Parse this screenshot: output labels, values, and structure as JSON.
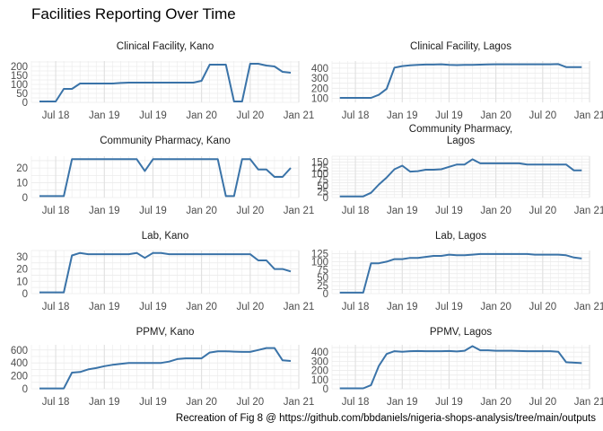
{
  "title": "Facilities Reporting Over Time",
  "caption": "Recreation of Fig 8 @ https://github.com/bbdaniels/nigeria-shops-analysis/tree/main/outputs",
  "line_color": "#3a73a8",
  "grid_color": "#ebebeb",
  "chart_data": [
    {
      "type": "line",
      "title": "Clinical Facility, Kano",
      "x": [
        "2018-05",
        "2018-06",
        "2018-07",
        "2018-08",
        "2018-09",
        "2018-10",
        "2018-11",
        "2018-12",
        "2019-01",
        "2019-02",
        "2019-03",
        "2019-04",
        "2019-05",
        "2019-06",
        "2019-07",
        "2019-08",
        "2019-09",
        "2019-10",
        "2019-11",
        "2019-12",
        "2020-01",
        "2020-02",
        "2020-03",
        "2020-04",
        "2020-05",
        "2020-06",
        "2020-07",
        "2020-08",
        "2020-09",
        "2020-10",
        "2020-11",
        "2020-12"
      ],
      "values": [
        5,
        5,
        5,
        75,
        75,
        105,
        105,
        105,
        105,
        105,
        108,
        110,
        110,
        110,
        110,
        110,
        110,
        110,
        110,
        110,
        120,
        210,
        210,
        210,
        5,
        5,
        215,
        215,
        205,
        200,
        170,
        165
      ],
      "ylim": [
        0,
        230
      ],
      "yticks": [
        0,
        50,
        100,
        150,
        200
      ]
    },
    {
      "type": "line",
      "title": "Clinical Facility, Lagos",
      "x": [
        "2018-05",
        "2018-06",
        "2018-07",
        "2018-08",
        "2018-09",
        "2018-10",
        "2018-11",
        "2018-12",
        "2019-01",
        "2019-02",
        "2019-03",
        "2019-04",
        "2019-05",
        "2019-06",
        "2019-07",
        "2019-08",
        "2019-09",
        "2019-10",
        "2019-11",
        "2019-12",
        "2020-01",
        "2020-02",
        "2020-03",
        "2020-04",
        "2020-05",
        "2020-06",
        "2020-07",
        "2020-08",
        "2020-09",
        "2020-10",
        "2020-11",
        "2020-12"
      ],
      "values": [
        105,
        105,
        105,
        105,
        105,
        135,
        195,
        405,
        420,
        428,
        432,
        435,
        435,
        438,
        432,
        430,
        432,
        432,
        434,
        436,
        438,
        438,
        438,
        438,
        438,
        438,
        438,
        438,
        440,
        410,
        410,
        410
      ],
      "ylim": [
        60,
        470
      ],
      "yticks": [
        100,
        200,
        300,
        400
      ]
    },
    {
      "type": "line",
      "title": "Community Pharmacy, Kano",
      "x": [
        "2018-05",
        "2018-06",
        "2018-07",
        "2018-08",
        "2018-09",
        "2018-10",
        "2018-11",
        "2018-12",
        "2019-01",
        "2019-02",
        "2019-03",
        "2019-04",
        "2019-05",
        "2019-06",
        "2019-07",
        "2019-08",
        "2019-09",
        "2019-10",
        "2019-11",
        "2019-12",
        "2020-01",
        "2020-02",
        "2020-03",
        "2020-04",
        "2020-05",
        "2020-06",
        "2020-07",
        "2020-08",
        "2020-09",
        "2020-10",
        "2020-11",
        "2020-12"
      ],
      "values": [
        1,
        1,
        1,
        1,
        26,
        26,
        26,
        26,
        26,
        26,
        26,
        26,
        26,
        18,
        26,
        26,
        26,
        26,
        26,
        26,
        26,
        26,
        26,
        1,
        1,
        26,
        26,
        19,
        19,
        14,
        14,
        20
      ],
      "ylim": [
        0,
        28
      ],
      "yticks": [
        0,
        10,
        20
      ]
    },
    {
      "type": "line",
      "title": "Community Pharmacy,\nLagos",
      "x": [
        "2018-05",
        "2018-06",
        "2018-07",
        "2018-08",
        "2018-09",
        "2018-10",
        "2018-11",
        "2018-12",
        "2019-01",
        "2019-02",
        "2019-03",
        "2019-04",
        "2019-05",
        "2019-06",
        "2019-07",
        "2019-08",
        "2019-09",
        "2019-10",
        "2019-11",
        "2019-12",
        "2020-01",
        "2020-02",
        "2020-03",
        "2020-04",
        "2020-05",
        "2020-06",
        "2020-07",
        "2020-08",
        "2020-09",
        "2020-10",
        "2020-11",
        "2020-12"
      ],
      "values": [
        5,
        5,
        5,
        5,
        20,
        55,
        85,
        120,
        135,
        110,
        112,
        118,
        118,
        120,
        130,
        140,
        140,
        162,
        145,
        145,
        145,
        145,
        145,
        145,
        140,
        140,
        140,
        140,
        140,
        140,
        115,
        115
      ],
      "ylim": [
        0,
        175
      ],
      "yticks": [
        0,
        25,
        50,
        75,
        100,
        125,
        150
      ]
    },
    {
      "type": "line",
      "title": "Lab, Kano",
      "x": [
        "2018-05",
        "2018-06",
        "2018-07",
        "2018-08",
        "2018-09",
        "2018-10",
        "2018-11",
        "2018-12",
        "2019-01",
        "2019-02",
        "2019-03",
        "2019-04",
        "2019-05",
        "2019-06",
        "2019-07",
        "2019-08",
        "2019-09",
        "2019-10",
        "2019-11",
        "2019-12",
        "2020-01",
        "2020-02",
        "2020-03",
        "2020-04",
        "2020-05",
        "2020-06",
        "2020-07",
        "2020-08",
        "2020-09",
        "2020-10",
        "2020-11",
        "2020-12"
      ],
      "values": [
        1,
        1,
        1,
        1,
        31,
        33,
        32,
        32,
        32,
        32,
        32,
        32,
        33,
        29,
        33,
        33,
        32,
        32,
        32,
        32,
        32,
        32,
        32,
        32,
        32,
        32,
        32,
        27,
        27,
        20,
        20,
        18
      ],
      "ylim": [
        0,
        35
      ],
      "yticks": [
        0,
        10,
        20,
        30
      ]
    },
    {
      "type": "line",
      "title": "Lab, Lagos",
      "x": [
        "2018-05",
        "2018-06",
        "2018-07",
        "2018-08",
        "2018-09",
        "2018-10",
        "2018-11",
        "2018-12",
        "2019-01",
        "2019-02",
        "2019-03",
        "2019-04",
        "2019-05",
        "2019-06",
        "2019-07",
        "2019-08",
        "2019-09",
        "2019-10",
        "2019-11",
        "2019-12",
        "2020-01",
        "2020-02",
        "2020-03",
        "2020-04",
        "2020-05",
        "2020-06",
        "2020-07",
        "2020-08",
        "2020-09",
        "2020-10",
        "2020-11",
        "2020-12"
      ],
      "values": [
        3,
        3,
        3,
        3,
        95,
        95,
        100,
        108,
        108,
        112,
        112,
        115,
        118,
        118,
        122,
        120,
        120,
        122,
        124,
        124,
        124,
        124,
        124,
        124,
        124,
        122,
        122,
        122,
        122,
        120,
        113,
        110
      ],
      "ylim": [
        0,
        135
      ],
      "yticks": [
        0,
        25,
        50,
        75,
        100,
        125
      ]
    },
    {
      "type": "line",
      "title": "PPMV, Kano",
      "x": [
        "2018-05",
        "2018-06",
        "2018-07",
        "2018-08",
        "2018-09",
        "2018-10",
        "2018-11",
        "2018-12",
        "2019-01",
        "2019-02",
        "2019-03",
        "2019-04",
        "2019-05",
        "2019-06",
        "2019-07",
        "2019-08",
        "2019-09",
        "2019-10",
        "2019-11",
        "2019-12",
        "2020-01",
        "2020-02",
        "2020-03",
        "2020-04",
        "2020-05",
        "2020-06",
        "2020-07",
        "2020-08",
        "2020-09",
        "2020-10",
        "2020-11",
        "2020-12"
      ],
      "values": [
        5,
        5,
        5,
        5,
        250,
        260,
        300,
        320,
        350,
        370,
        385,
        400,
        400,
        400,
        400,
        400,
        420,
        460,
        470,
        470,
        470,
        560,
        580,
        580,
        575,
        570,
        570,
        600,
        630,
        630,
        440,
        430
      ],
      "ylim": [
        0,
        680
      ],
      "yticks": [
        0,
        200,
        400,
        600
      ]
    },
    {
      "type": "line",
      "title": "PPMV, Lagos",
      "x": [
        "2018-05",
        "2018-06",
        "2018-07",
        "2018-08",
        "2018-09",
        "2018-10",
        "2018-11",
        "2018-12",
        "2019-01",
        "2019-02",
        "2019-03",
        "2019-04",
        "2019-05",
        "2019-06",
        "2019-07",
        "2019-08",
        "2019-09",
        "2019-10",
        "2019-11",
        "2019-12",
        "2020-01",
        "2020-02",
        "2020-03",
        "2020-04",
        "2020-05",
        "2020-06",
        "2020-07",
        "2020-08",
        "2020-09",
        "2020-10",
        "2020-11",
        "2020-12"
      ],
      "values": [
        5,
        5,
        5,
        5,
        40,
        250,
        380,
        410,
        405,
        410,
        412,
        410,
        410,
        410,
        412,
        408,
        415,
        465,
        420,
        420,
        415,
        415,
        415,
        412,
        410,
        410,
        410,
        410,
        405,
        290,
        285,
        280
      ],
      "ylim": [
        0,
        480
      ],
      "yticks": [
        0,
        100,
        200,
        300,
        400
      ]
    }
  ],
  "x_axis": {
    "ticks": [
      {
        "at": "2018-07",
        "label": "Jul 18"
      },
      {
        "at": "2019-01",
        "label": "Jan 19"
      },
      {
        "at": "2019-07",
        "label": "Jul 19"
      },
      {
        "at": "2020-01",
        "label": "Jan 20"
      },
      {
        "at": "2020-07",
        "label": "Jul 20"
      },
      {
        "at": "2021-01",
        "label": "Jan 21"
      }
    ],
    "xlim": [
      "2018-04",
      "2021-01"
    ]
  }
}
